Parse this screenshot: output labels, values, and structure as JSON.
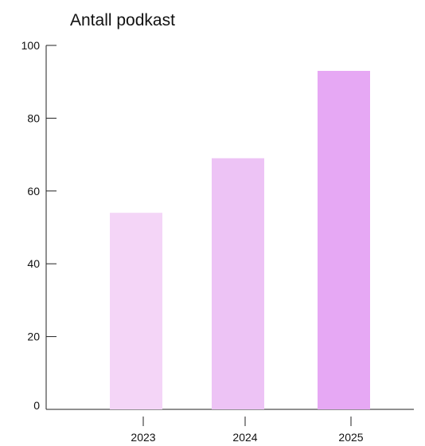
{
  "chart_data": {
    "type": "bar",
    "title": "Antall podkast",
    "categories": [
      "2023",
      "2024",
      "2025"
    ],
    "values": [
      54,
      69,
      93
    ],
    "ylim": [
      0,
      100
    ],
    "yticks": [
      0,
      20,
      40,
      60,
      80,
      100
    ],
    "xlabel": "",
    "ylabel": "",
    "grid": false,
    "legend": "none",
    "bar_colors": [
      "#f4d5f7",
      "#edc3f5",
      "#e6a8f4"
    ],
    "axis_color": "#222222"
  }
}
